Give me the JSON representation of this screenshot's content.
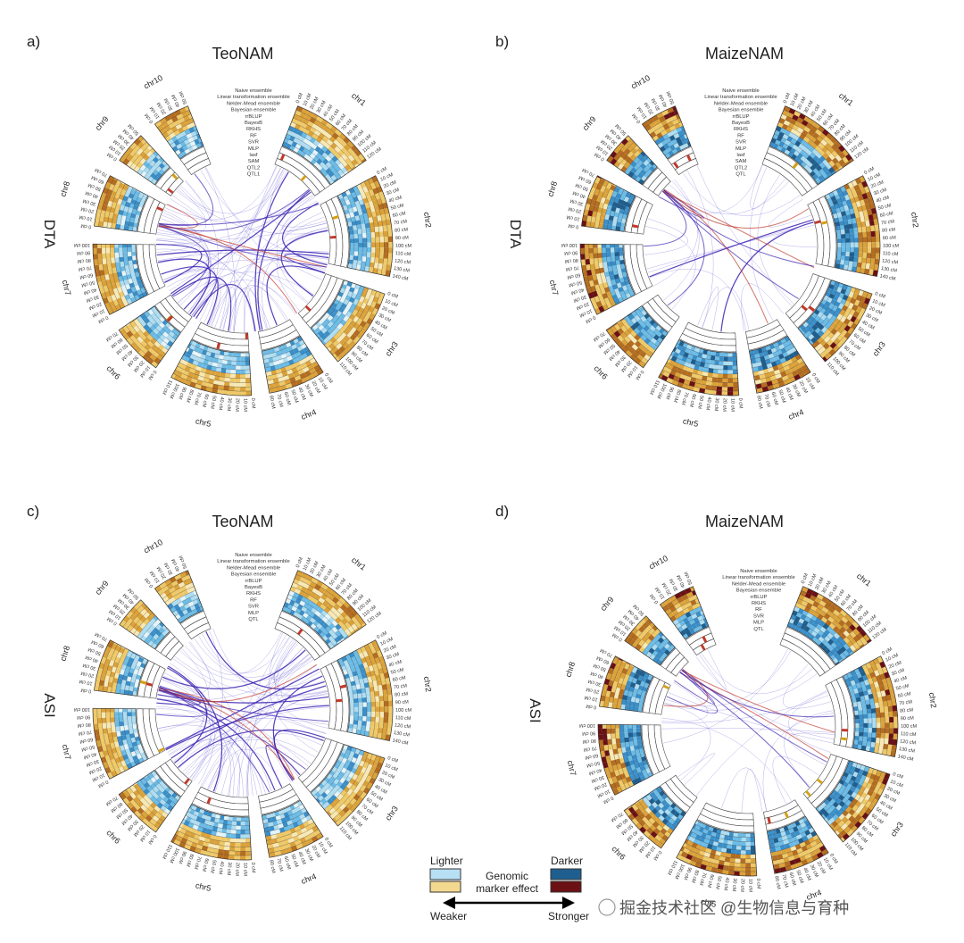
{
  "panels": [
    {
      "letter": "a)",
      "title": "TeoNAM",
      "trait": "DTA",
      "models": [
        "Naive ensemble",
        "Linear transformation ensemble",
        "Nelder-Mead ensemble",
        "Bayesian ensemble",
        "rrBLUP",
        "BayesB",
        "RKHS",
        "RF",
        "SVR",
        "MLP",
        "lasf",
        "SAM",
        "QTL2",
        "QTL1"
      ],
      "chromosomes": [
        "chr1",
        "chr2",
        "chr3",
        "chr4",
        "chr5",
        "chr6",
        "chr7",
        "chr8",
        "chr9",
        "chr10"
      ],
      "inner_palette": "light",
      "links": "dense"
    },
    {
      "letter": "b)",
      "title": "MaizeNAM",
      "trait": "DTA",
      "models": [
        "Naive ensemble",
        "Linear transformation ensemble",
        "Nelder-Mead ensemble",
        "Bayesian ensemble",
        "rrBLUP",
        "BayesB",
        "RKHS",
        "RF",
        "SVR",
        "MLP",
        "lasf",
        "SAM",
        "QTL2",
        "QTL"
      ],
      "chromosomes": [
        "chr1",
        "chr2",
        "chr3",
        "chr4",
        "chr5",
        "chr6",
        "chr7",
        "chr8",
        "chr9",
        "chr10"
      ],
      "inner_palette": "dark",
      "links": "sparse"
    },
    {
      "letter": "c)",
      "title": "TeoNAM",
      "trait": "ASI",
      "models": [
        "Naive ensemble",
        "Linear transformation ensemble",
        "Nelder-Mead ensemble",
        "Bayesian ensemble",
        "rrBLUP",
        "BayesB",
        "RKHS",
        "RF",
        "SVR",
        "MLP",
        "QTL"
      ],
      "chromosomes": [
        "chr1",
        "chr2",
        "chr3",
        "chr4",
        "chr5",
        "chr6",
        "chr7",
        "chr8",
        "chr9",
        "chr10"
      ],
      "inner_palette": "light",
      "links": "dense"
    },
    {
      "letter": "d)",
      "title": "MaizeNAM",
      "trait": "ASI",
      "models": [
        "Naive ensemble",
        "Linear transformation ensemble",
        "Nelder-Mead ensemble",
        "Bayesian ensemble",
        "rrBLUP",
        "RKHS",
        "RF",
        "SVR",
        "MLP",
        "QTL"
      ],
      "chromosomes": [
        "chr1",
        "chr2",
        "chr3",
        "chr4",
        "chr5",
        "chr6",
        "chr7",
        "chr8",
        "chr9",
        "chr10"
      ],
      "inner_palette": "dark",
      "links": "sparse"
    }
  ],
  "legend": {
    "lighter": "Lighter",
    "darker": "Darker",
    "center_line1": "Genomic",
    "center_line2": "marker effect",
    "weaker": "Weaker",
    "stronger": "Stronger",
    "colors": {
      "light_blue": "#b8e0f5",
      "light_orange": "#f3d98f",
      "dark_blue": "#1f5f8f",
      "dark_red": "#6b1014"
    }
  },
  "watermark": "掘金技术社区 @生物信息与育种",
  "colors": {
    "blue_ramp": [
      "#e3f4fb",
      "#aeddf2",
      "#6bbbe6",
      "#3a8fc9",
      "#1f5f8f"
    ],
    "orange_ramp": [
      "#f8e8b4",
      "#efc968",
      "#dba23a",
      "#b56d1f",
      "#6b1014"
    ],
    "link": "#5a4fcf",
    "link_strong": "#3a1fb0",
    "marker_red": "#c0392b"
  }
}
